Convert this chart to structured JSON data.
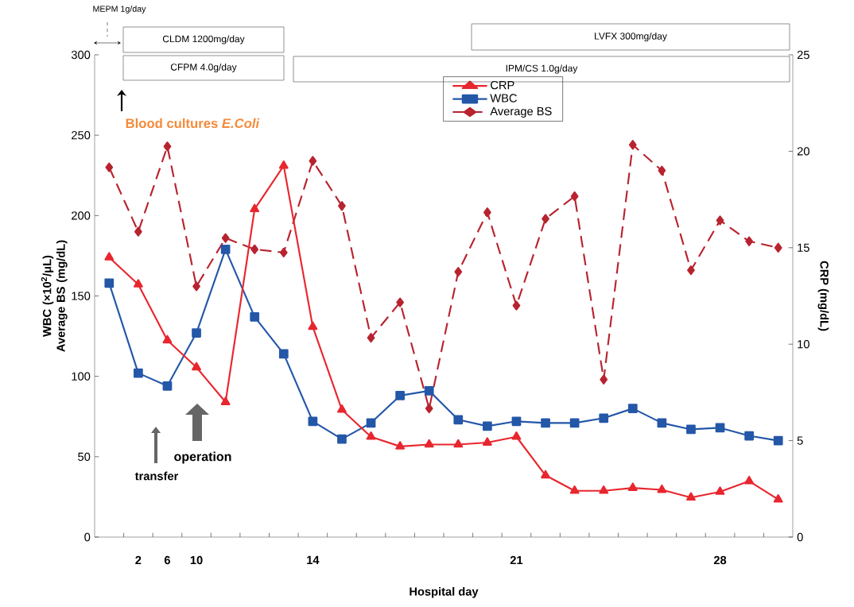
{
  "chart_data": {
    "type": "line",
    "categories": [
      null,
      "2",
      "6",
      "10",
      null,
      null,
      null,
      "14",
      null,
      null,
      null,
      null,
      null,
      null,
      "21",
      null,
      null,
      null,
      null,
      null,
      null,
      "28",
      null,
      null
    ],
    "series": [
      {
        "name": "CRP",
        "color": "#e8262e",
        "axis": "y2",
        "marker": "triangle",
        "line_style": "solid",
        "values": [
          14.5,
          13.1,
          10.2,
          8.8,
          7.0,
          17.0,
          19.25,
          10.9,
          6.6,
          5.2,
          4.7,
          4.8,
          4.8,
          4.9,
          5.2,
          3.2,
          2.4,
          2.4,
          2.55,
          2.45,
          2.05,
          2.35,
          2.9,
          1.95
        ]
      },
      {
        "name": "WBC",
        "color": "#2457a8",
        "marker": "square",
        "line_style": "solid",
        "values": [
          158,
          102,
          94,
          127,
          179,
          137,
          114,
          72,
          61,
          71,
          88,
          91,
          73,
          69,
          72,
          71,
          71,
          74,
          80,
          71,
          67,
          68,
          63,
          60
        ]
      },
      {
        "name": "Average BS",
        "color": "#b8232f",
        "marker": "diamond",
        "line_style": "dashed",
        "values": [
          230,
          190,
          243,
          156,
          186,
          179,
          177,
          234,
          206,
          124,
          146,
          80,
          165,
          202,
          144,
          198,
          212,
          98,
          244,
          228,
          166,
          197,
          184,
          180
        ]
      }
    ],
    "xlabel": "Hospital day",
    "ylabel": "WBC (×10$^{2}$/μL) Average BS (mg/dL)",
    "y2label": "CRP (mg/dL)",
    "ylim": [
      0,
      300
    ],
    "yticks": [
      0,
      50,
      100,
      150,
      200,
      250,
      300
    ],
    "y2lim": [
      0,
      25
    ],
    "y2ticks": [
      0,
      5,
      10,
      15,
      20,
      25
    ],
    "legend": "top",
    "annotations": [
      "MEPM 1g/day",
      "CLDM 1200mg/day",
      "CFPM 4.0g/day",
      "LVFX 300mg/day",
      "IPM/CS 1.0g/day",
      "Blood cultures  *E.Coli*",
      "operation",
      "transfer"
    ]
  }
}
